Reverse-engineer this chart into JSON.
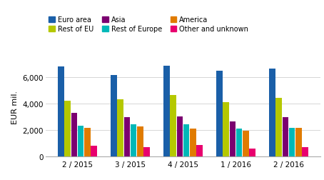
{
  "groups": [
    "2 / 2015",
    "3 / 2015",
    "4 / 2015",
    "1 / 2016",
    "2 / 2016"
  ],
  "series": {
    "Euro area": [
      6800,
      6150,
      6850,
      6450,
      6650
    ],
    "Rest of EU": [
      4200,
      4300,
      4650,
      4100,
      4400
    ],
    "Asia": [
      3300,
      2950,
      3050,
      2650,
      2980
    ],
    "Rest of Europe": [
      2350,
      2420,
      2420,
      2100,
      2150
    ],
    "America": [
      2180,
      2260,
      2100,
      1930,
      2160
    ],
    "Other and unknown": [
      800,
      700,
      850,
      600,
      720
    ]
  },
  "colors": {
    "Euro area": "#1a5fa8",
    "Rest of EU": "#b5c800",
    "Asia": "#7b0070",
    "Rest of Europe": "#00b8b8",
    "America": "#e07b00",
    "Other and unknown": "#e8006e"
  },
  "bar_order": [
    "Euro area",
    "Rest of EU",
    "Asia",
    "Rest of Europe",
    "America",
    "Other and unknown"
  ],
  "ylabel": "EUR mil.",
  "ylim": [
    0,
    7500
  ],
  "yticks": [
    0,
    2000,
    4000,
    6000
  ],
  "background_color": "#ffffff",
  "grid_color": "#d0d0d0"
}
